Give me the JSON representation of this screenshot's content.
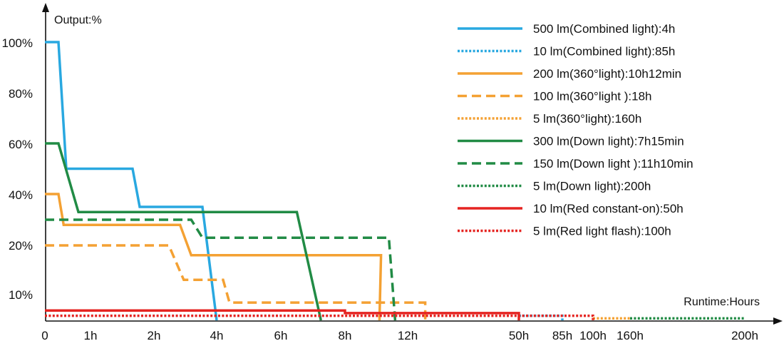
{
  "chart_data": {
    "type": "line",
    "ylabel": "Output:%",
    "xlabel": "Runtime:Hours",
    "grid": false,
    "legend_position": "top-right",
    "x_tick_labels": [
      "0",
      "1h",
      "2h",
      "4h",
      "6h",
      "8h",
      "12h",
      "50h",
      "85h",
      "100h",
      "160h",
      "200h"
    ],
    "y_tick_labels": [
      "100%",
      "80%",
      "60%",
      "40%",
      "20%",
      "10%"
    ],
    "series": [
      {
        "name": "500 lm(Combined light):4h",
        "color": "#29a8e0",
        "dash": "solid",
        "points": [
          [
            "0",
            100
          ],
          [
            "0.3h",
            100
          ],
          [
            "0.6h",
            50
          ],
          [
            "1.6h",
            50
          ],
          [
            "1.8h",
            35
          ],
          [
            "3.3h",
            35
          ],
          [
            "4h",
            0
          ]
        ]
      },
      {
        "name": "10 lm(Combined light):85h",
        "color": "#29a8e0",
        "dash": "dotted",
        "points": [
          [
            "50h",
            2
          ],
          [
            "85h",
            2
          ],
          [
            "85h",
            0
          ]
        ]
      },
      {
        "name": "200 lm(360°light):10h12min",
        "color": "#f4a133",
        "dash": "solid",
        "points": [
          [
            "0",
            40
          ],
          [
            "0.3h",
            40
          ],
          [
            "0.5h",
            28
          ],
          [
            "2.7h",
            28
          ],
          [
            "3h",
            18
          ],
          [
            "10.3h",
            18
          ],
          [
            "10.2h",
            0
          ]
        ]
      },
      {
        "name": "100 lm(360°light ):18h",
        "color": "#f4a133",
        "dash": "dashed",
        "points": [
          [
            "0",
            20
          ],
          [
            "2.4h",
            20
          ],
          [
            "2.8h",
            13
          ],
          [
            "4.2h",
            13
          ],
          [
            "4.4h",
            7
          ],
          [
            "18h",
            7
          ],
          [
            "18h",
            0
          ]
        ]
      },
      {
        "name": "5 lm(360°light):160h",
        "color": "#f4a133",
        "dash": "dotted",
        "points": [
          [
            "100h",
            1
          ],
          [
            "160h",
            1
          ]
        ]
      },
      {
        "name": "300 lm(Down light):7h15min",
        "color": "#218b45",
        "dash": "solid",
        "points": [
          [
            "0",
            60
          ],
          [
            "0.3h",
            60
          ],
          [
            "0.8h",
            33
          ],
          [
            "6.5h",
            33
          ],
          [
            "7.25h",
            0
          ]
        ]
      },
      {
        "name": "150 lm(Down light ):11h10min",
        "color": "#218b45",
        "dash": "dashed",
        "points": [
          [
            "0",
            30
          ],
          [
            "3h",
            30
          ],
          [
            "3.3h",
            23
          ],
          [
            "10.8h",
            23
          ],
          [
            "11.2h",
            0
          ]
        ]
      },
      {
        "name": "5 lm(Down light):200h",
        "color": "#218b45",
        "dash": "dotted",
        "points": [
          [
            "160h",
            1
          ],
          [
            "200h",
            1
          ]
        ]
      },
      {
        "name": "10 lm(Red constant-on):50h",
        "color": "#e52421",
        "dash": "solid",
        "points": [
          [
            "0",
            4
          ],
          [
            "8h",
            4
          ],
          [
            "8h",
            3
          ],
          [
            "50h",
            3
          ],
          [
            "50h",
            0
          ]
        ]
      },
      {
        "name": "5 lm(Red light flash):100h",
        "color": "#e52421",
        "dash": "dotted",
        "points": [
          [
            "0",
            2
          ],
          [
            "100h",
            2
          ],
          [
            "100h",
            0
          ]
        ]
      }
    ]
  }
}
